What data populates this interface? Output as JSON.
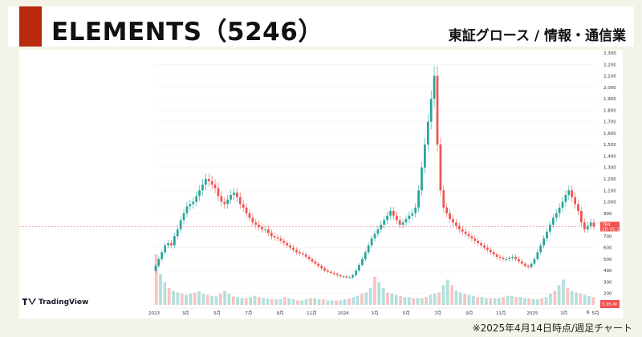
{
  "header": {
    "title": "ELEMENTS（5246）",
    "market": "東証グロース / 情報・通信業",
    "accent_color": "#b8290e"
  },
  "footnote": "※2025年4月14日時点/週足チャート",
  "watermark": "TradingView",
  "chart_data": {
    "type": "candlestick",
    "title": "",
    "ylim": [
      100,
      2300
    ],
    "yticks": [
      "2,300",
      "2,200",
      "2,100",
      "2,000",
      "1,900",
      "1,800",
      "1,700",
      "1,600",
      "1,500",
      "1,400",
      "1,300",
      "1,200",
      "1,100",
      "1,000",
      "900",
      "800",
      "700",
      "600",
      "500",
      "400",
      "300",
      "200"
    ],
    "xticks": [
      "2023",
      "3月",
      "5月",
      "7月",
      "9月",
      "11月",
      "2024",
      "3月",
      "5月",
      "7月",
      "9月",
      "11月",
      "2025",
      "3月",
      "5月"
    ],
    "last_price_label": "784",
    "countdown_label": "2D 05:18",
    "volume_label": "3.05 M",
    "up_color": "#26a69a",
    "down_color": "#ef5350",
    "price_line_value": 784,
    "approx_weekly_close": [
      440,
      500,
      560,
      620,
      640,
      620,
      700,
      760,
      840,
      900,
      960,
      980,
      1000,
      1050,
      1100,
      1150,
      1200,
      1180,
      1150,
      1120,
      1050,
      1000,
      980,
      1020,
      1060,
      1080,
      1040,
      980,
      950,
      900,
      860,
      820,
      800,
      780,
      760,
      760,
      730,
      700,
      690,
      680,
      660,
      640,
      620,
      600,
      580,
      560,
      550,
      540,
      520,
      500,
      480,
      460,
      440,
      420,
      400,
      390,
      380,
      370,
      360,
      350,
      350,
      340,
      340,
      360,
      400,
      450,
      500,
      560,
      620,
      680,
      720,
      760,
      800,
      840,
      880,
      920,
      880,
      840,
      800,
      820,
      850,
      880,
      900,
      950,
      1100,
      1300,
      1500,
      1700,
      1900,
      2100,
      1500,
      1100,
      950,
      900,
      850,
      820,
      790,
      760,
      740,
      720,
      700,
      680,
      660,
      640,
      620,
      600,
      580,
      560,
      540,
      520,
      510,
      500,
      500,
      510,
      520,
      500,
      480,
      460,
      440,
      430,
      460,
      500,
      560,
      620,
      680,
      740,
      800,
      860,
      900,
      950,
      1000,
      1060,
      1100,
      1040,
      980,
      920,
      820,
      760,
      790,
      820,
      784
    ],
    "volume_profile": [
      0.9,
      0.55,
      0.4,
      0.3,
      0.25,
      0.22,
      0.2,
      0.18,
      0.2,
      0.22,
      0.24,
      0.2,
      0.18,
      0.16,
      0.15,
      0.2,
      0.25,
      0.2,
      0.15,
      0.14,
      0.12,
      0.12,
      0.14,
      0.16,
      0.14,
      0.12,
      0.12,
      0.1,
      0.1,
      0.1,
      0.14,
      0.12,
      0.1,
      0.08,
      0.08,
      0.1,
      0.12,
      0.12,
      0.1,
      0.1,
      0.08,
      0.08,
      0.08,
      0.08,
      0.1,
      0.12,
      0.14,
      0.16,
      0.2,
      0.22,
      0.3,
      0.5,
      0.4,
      0.3,
      0.22,
      0.2,
      0.18,
      0.16,
      0.14,
      0.14,
      0.12,
      0.12,
      0.12,
      0.14,
      0.18,
      0.2,
      0.22,
      0.35,
      0.45,
      0.35,
      0.25,
      0.22,
      0.2,
      0.18,
      0.16,
      0.14,
      0.14,
      0.12,
      0.12,
      0.12,
      0.12,
      0.14,
      0.16,
      0.16,
      0.14,
      0.14,
      0.12,
      0.12,
      0.1,
      0.1,
      0.12,
      0.14,
      0.2,
      0.25,
      0.35,
      0.45,
      0.3,
      0.25,
      0.22,
      0.2,
      0.18,
      0.16,
      0.14
    ]
  }
}
